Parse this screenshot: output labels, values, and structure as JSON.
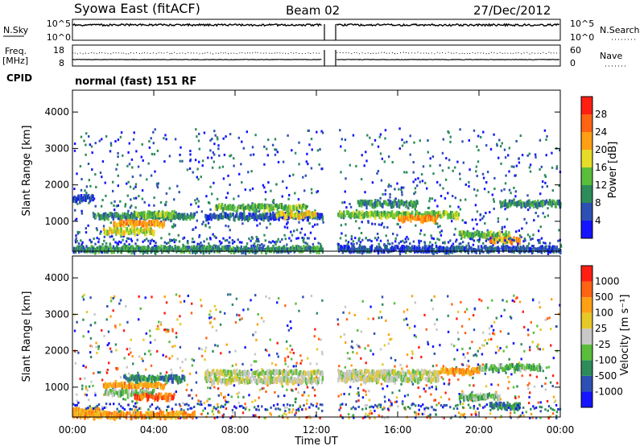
{
  "header": {
    "station": "Syowa East (fitACF)",
    "beam": "Beam 02",
    "date": "27/Dec/2012",
    "cpid_label": "CPID",
    "cpid_text": "normal (fast) 151 RF"
  },
  "sky_panel": {
    "left_label": "N.Sky",
    "right_label": "N.Search",
    "left_ticks": [
      "10^5",
      "10^0"
    ],
    "right_ticks": [
      "10^5",
      "10^0"
    ]
  },
  "freq_panel": {
    "left_label_1": "Freq.",
    "left_label_2": "[MHz]",
    "right_label": "Nave",
    "left_ticks": [
      "18",
      "8"
    ],
    "right_ticks": [
      "60",
      "0"
    ]
  },
  "chart_data": [
    {
      "type": "heatmap",
      "name": "power",
      "xlabel": "Time UT",
      "ylabel": "Slant Range [km]",
      "xlim": [
        0,
        24
      ],
      "ylim": [
        180,
        4600
      ],
      "y_ticks": [
        "1000",
        "2000",
        "3000",
        "4000"
      ],
      "data_gap_hours": [
        12.3,
        13.0
      ],
      "colorbar": {
        "label": "Power [dB]",
        "tick_labels": [
          "4",
          "8",
          "12",
          "16",
          "20",
          "24",
          "28"
        ],
        "colors": [
          "#1414ff",
          "#2d50b4",
          "#2d8c5a",
          "#5abe3c",
          "#e6dc28",
          "#ffa014",
          "#ff6414",
          "#ff1e14"
        ]
      },
      "bands": [
        {
          "t0": 0.0,
          "t1": 1.0,
          "r": 1700,
          "level": 1
        },
        {
          "t0": 1.0,
          "t1": 6.0,
          "r": 1200,
          "level": 2
        },
        {
          "t0": 2.0,
          "t1": 4.5,
          "r": 1000,
          "level": 5
        },
        {
          "t0": 1.5,
          "t1": 4.0,
          "r": 800,
          "level": 4
        },
        {
          "t0": 3.0,
          "t1": 5.0,
          "r": 1250,
          "level": 3
        },
        {
          "t0": 0.0,
          "t1": 12.3,
          "r": 300,
          "level": 2
        },
        {
          "t0": 6.5,
          "t1": 12.3,
          "r": 1200,
          "level": 1
        },
        {
          "t0": 7.0,
          "t1": 11.5,
          "r": 1450,
          "level": 3
        },
        {
          "t0": 10.0,
          "t1": 12.0,
          "r": 1250,
          "level": 4
        },
        {
          "t0": 13.0,
          "t1": 19.0,
          "r": 1250,
          "level": 3
        },
        {
          "t0": 14.0,
          "t1": 17.0,
          "r": 1550,
          "level": 2
        },
        {
          "t0": 16.0,
          "t1": 18.0,
          "r": 1150,
          "level": 5
        },
        {
          "t0": 19.0,
          "t1": 21.5,
          "r": 700,
          "level": 3
        },
        {
          "t0": 20.5,
          "t1": 22.0,
          "r": 550,
          "level": 5
        },
        {
          "t0": 21.0,
          "t1": 24.0,
          "r": 1550,
          "level": 2
        },
        {
          "t0": 13.0,
          "t1": 24.0,
          "r": 300,
          "level": 1
        }
      ]
    },
    {
      "type": "heatmap",
      "name": "velocity",
      "xlabel": "Time UT",
      "ylabel": "Slant Range [km]",
      "xlim": [
        0,
        24
      ],
      "ylim": [
        180,
        4600
      ],
      "x_ticks": [
        "00:00",
        "04:00",
        "08:00",
        "12:00",
        "16:00",
        "20:00",
        "00:00"
      ],
      "y_ticks": [
        "1000",
        "2000",
        "3000",
        "4000"
      ],
      "data_gap_hours": [
        12.3,
        13.0
      ],
      "colorbar": {
        "label": "Velocity [m s⁻¹]",
        "tick_labels": [
          "1000",
          "500",
          "100",
          "25",
          "-25",
          "-100",
          "-500",
          "-1000"
        ],
        "colors": [
          "#1414ff",
          "#2d50b4",
          "#2d8c5a",
          "#5abe3c",
          "#c8c8c8",
          "#e6c828",
          "#ffa014",
          "#ff6414",
          "#ff1e14"
        ]
      },
      "bands": [
        {
          "t0": 0.0,
          "t1": 1.5,
          "r": 400,
          "level": 6
        },
        {
          "t0": 1.5,
          "t1": 4.5,
          "r": 1100,
          "level": 6
        },
        {
          "t0": 1.5,
          "t1": 4.0,
          "r": 900,
          "level": 3
        },
        {
          "t0": 2.5,
          "t1": 5.5,
          "r": 1300,
          "level": 2
        },
        {
          "t0": 3.0,
          "t1": 5.0,
          "r": 800,
          "level": 7
        },
        {
          "t0": 0.0,
          "t1": 6.0,
          "r": 300,
          "level": 6
        },
        {
          "t0": 6.5,
          "t1": 12.3,
          "r": 1450,
          "level": 4
        },
        {
          "t0": 6.5,
          "t1": 12.3,
          "r": 1250,
          "level": 4
        },
        {
          "t0": 13.0,
          "t1": 18.0,
          "r": 1450,
          "level": 4
        },
        {
          "t0": 13.0,
          "t1": 18.0,
          "r": 1300,
          "level": 4
        },
        {
          "t0": 18.0,
          "t1": 20.0,
          "r": 1500,
          "level": 6
        },
        {
          "t0": 19.0,
          "t1": 21.0,
          "r": 800,
          "level": 3
        },
        {
          "t0": 20.5,
          "t1": 22.0,
          "r": 550,
          "level": 2
        },
        {
          "t0": 20.0,
          "t1": 23.0,
          "r": 1600,
          "level": 3
        }
      ]
    }
  ]
}
